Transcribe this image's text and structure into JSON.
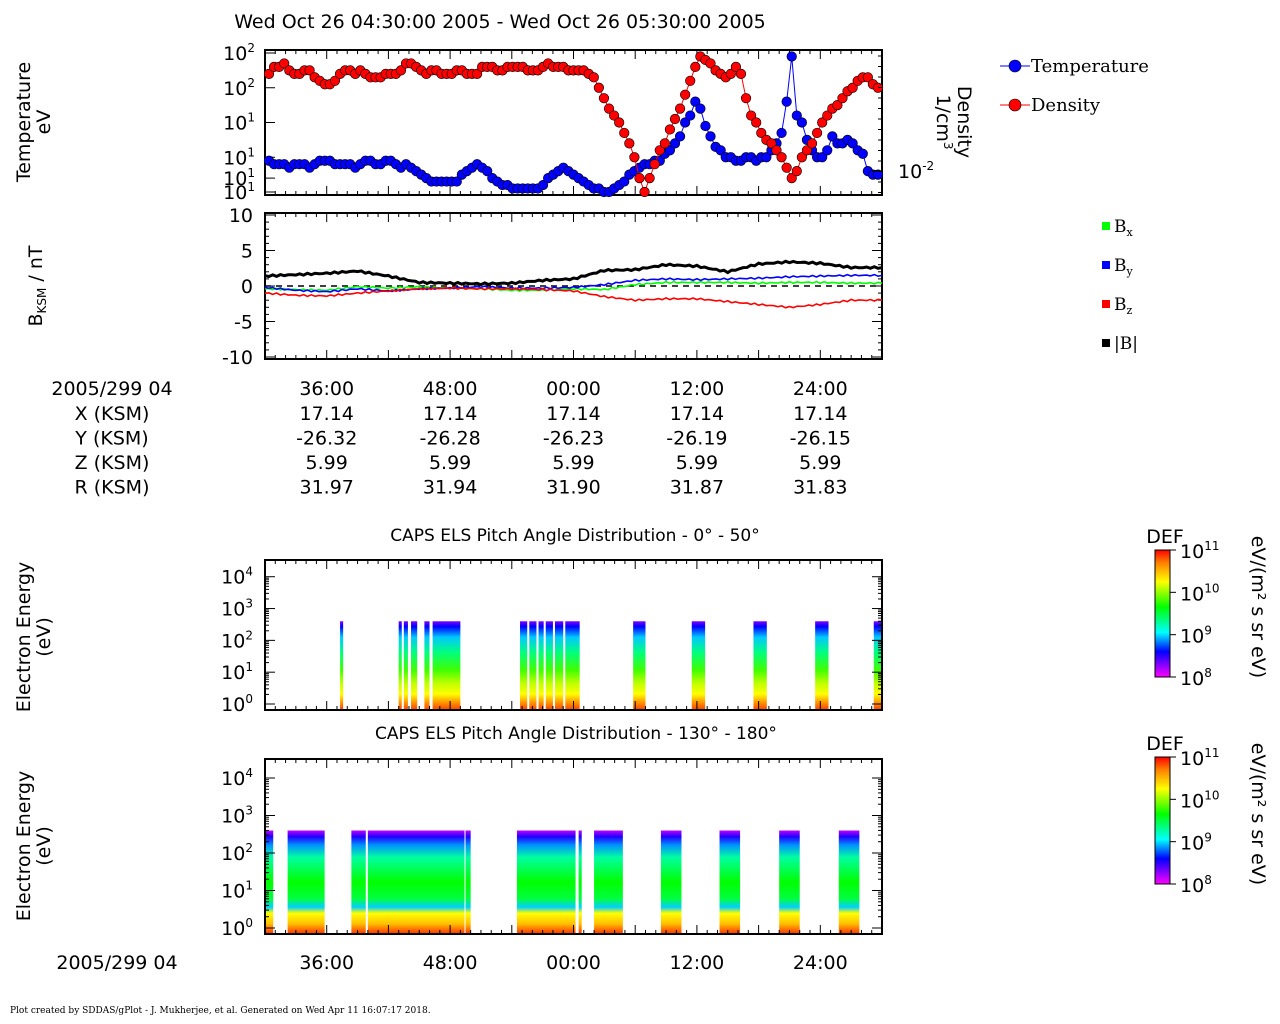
{
  "page": {
    "title": "Wed Oct 26 04:30:00 2005 - Wed Oct 26 05:30:00 2005",
    "footer": "Plot created by SDDAS/gPlot - J. Mukherjee, et al.  Generated on Wed Apr 11 16:07:17 2018."
  },
  "colors": {
    "temperature": "#0000ff",
    "density": "#ff0000",
    "bx": "#00ff00",
    "by": "#0000ff",
    "bz": "#ff0000",
    "btot": "#000000"
  },
  "chart_data": [
    {
      "type": "scatter",
      "ylabel_line1": "Temperature",
      "ylabel_line2": "eV",
      "y2label_line1": "Density",
      "y2label_line2": "1/cm",
      "y2label_sup": "3",
      "yticks_left": [
        {
          "base": "10",
          "exp": "2",
          "y": 40
        },
        {
          "base": "10",
          "exp": "2",
          "y": 30
        },
        {
          "base": "10",
          "exp": "1",
          "y": 20
        },
        {
          "base": "10",
          "exp": "1",
          "y": 10
        },
        {
          "base": "10",
          "exp": "1",
          "y": 4
        },
        {
          "base": "10",
          "exp": "1",
          "y": 0
        }
      ],
      "ytick_right": {
        "base": "10",
        "exp": "-2"
      },
      "xlim_min": [
        0,
        60
      ],
      "ylim": [
        0,
        40
      ],
      "legend": [
        {
          "name": "Temperature",
          "color": "#0000ff"
        },
        {
          "name": "Density",
          "color": "#ff0000"
        }
      ],
      "series": [
        {
          "name": "Temperature",
          "color": "#0000ff",
          "y": [
            9,
            8,
            8,
            8,
            7,
            8,
            8,
            8,
            7,
            8,
            9,
            9,
            9,
            8,
            8,
            8,
            8,
            7,
            8,
            9,
            9,
            8,
            8,
            9,
            9,
            8,
            7,
            8,
            7,
            6,
            5,
            4,
            3,
            3,
            3,
            3,
            3,
            3,
            5,
            6,
            7,
            8,
            7,
            6,
            4,
            3,
            2,
            2,
            1,
            1,
            1,
            1,
            1,
            1,
            2,
            4,
            5,
            6,
            7,
            6,
            5,
            4,
            3,
            2,
            1,
            1,
            0,
            0,
            1,
            2,
            3,
            5,
            6,
            7,
            8,
            8,
            9,
            9,
            11,
            12,
            14,
            16,
            20,
            22,
            26,
            24,
            19,
            16,
            13,
            12,
            10,
            10,
            9,
            9,
            10,
            10,
            9,
            10,
            10,
            12,
            14,
            17,
            26,
            39,
            22,
            20,
            15,
            12,
            10,
            10,
            12,
            16,
            14,
            14,
            15,
            14,
            12,
            11,
            6,
            5,
            5
          ]
        },
        {
          "name": "Density",
          "color": "#ff0000",
          "y": [
            34,
            36,
            36,
            37,
            35,
            34,
            34,
            35,
            35,
            33,
            32,
            31,
            31,
            32,
            34,
            35,
            35,
            34,
            35,
            34,
            33,
            33,
            33,
            34,
            34,
            34,
            35,
            37,
            37,
            36,
            35,
            34,
            35,
            35,
            34,
            34,
            34,
            35,
            35,
            34,
            34,
            34,
            36,
            36,
            36,
            35,
            35,
            36,
            36,
            36,
            36,
            35,
            35,
            35,
            36,
            37,
            36,
            36,
            36,
            35,
            35,
            35,
            35,
            34,
            33,
            30,
            27,
            24,
            22,
            20,
            17,
            14,
            10,
            4,
            0,
            4,
            8,
            12,
            14,
            18,
            21,
            24,
            28,
            32,
            36,
            39,
            38,
            37,
            35,
            34,
            33,
            34,
            36,
            34,
            27,
            22,
            20,
            17,
            15,
            14,
            12,
            10,
            7,
            4,
            6,
            10,
            12,
            14,
            17,
            20,
            22,
            24,
            25,
            27,
            29,
            30,
            32,
            33,
            33,
            31,
            30
          ]
        }
      ]
    },
    {
      "type": "line",
      "ylabel": "B",
      "ylabel_sub": "KSM",
      "ylabel_unit": " / nT",
      "ylim": [
        -10,
        10
      ],
      "yticks": [
        10,
        5,
        0,
        -5,
        -10
      ],
      "ytick_labels": [
        "10",
        "5",
        "0",
        "-5",
        "-10"
      ],
      "xlim_min": [
        0,
        60
      ],
      "zero_line": "dashed",
      "legend": [
        {
          "name": "B",
          "sub": "x",
          "color": "#00ff00"
        },
        {
          "name": "B",
          "sub": "y",
          "color": "#0000ff"
        },
        {
          "name": "B",
          "sub": "z",
          "color": "#ff0000"
        },
        {
          "name": "|B|",
          "sub": "",
          "color": "#000000"
        }
      ],
      "series": [
        {
          "name": "Bx",
          "color": "#00ff00",
          "x": [
            0,
            3,
            6,
            9,
            12,
            15,
            18,
            21,
            24,
            27,
            30,
            33,
            36,
            39,
            42,
            45,
            48,
            51,
            54,
            57,
            60
          ],
          "y": [
            -0.4,
            -0.5,
            -0.6,
            -0.1,
            -0.3,
            -0.1,
            -0.3,
            -0.4,
            -0.6,
            -0.6,
            -0.4,
            -0.5,
            0.2,
            0.5,
            0.5,
            0.5,
            0.4,
            0.5,
            0.5,
            0.4,
            0.4
          ]
        },
        {
          "name": "By",
          "color": "#0000ff",
          "x": [
            0,
            3,
            6,
            9,
            12,
            15,
            18,
            21,
            24,
            27,
            30,
            33,
            36,
            39,
            42,
            45,
            48,
            51,
            54,
            57,
            60
          ],
          "y": [
            -0.2,
            -0.6,
            -0.8,
            -0.4,
            -0.7,
            -0.4,
            -0.3,
            -0.1,
            -0.3,
            -0.3,
            -0.2,
            0.2,
            0.8,
            1.0,
            0.9,
            1.0,
            1.1,
            1.3,
            1.4,
            1.5,
            1.5
          ]
        },
        {
          "name": "Bz",
          "color": "#ff0000",
          "x": [
            0,
            3,
            6,
            9,
            12,
            15,
            18,
            21,
            24,
            27,
            30,
            33,
            36,
            39,
            42,
            45,
            48,
            51,
            54,
            57,
            60
          ],
          "y": [
            -1.0,
            -1.3,
            -1.4,
            -1.0,
            -0.7,
            -0.4,
            -0.3,
            -0.4,
            -0.4,
            -0.5,
            -0.7,
            -1.5,
            -2.0,
            -1.8,
            -1.8,
            -2.2,
            -2.6,
            -3.0,
            -2.6,
            -2.0,
            -2.0
          ]
        },
        {
          "name": "|B|",
          "color": "#000000",
          "x": [
            0,
            3,
            6,
            9,
            12,
            15,
            18,
            21,
            24,
            27,
            30,
            33,
            36,
            39,
            42,
            45,
            48,
            51,
            54,
            57,
            60
          ],
          "y": [
            1.4,
            1.6,
            1.8,
            2.1,
            1.4,
            0.5,
            0.4,
            0.3,
            0.4,
            0.8,
            1.0,
            2.2,
            2.3,
            3.0,
            2.8,
            2.0,
            3.1,
            3.4,
            3.2,
            2.6,
            2.6
          ]
        }
      ]
    },
    {
      "type": "heatmap",
      "title": "CAPS ELS Pitch Angle Distribution - 0° - 50°",
      "ylabel_line1": "Electron Energy",
      "ylabel_line2": "(eV)",
      "yticks": [
        {
          "base": "10",
          "exp": "4"
        },
        {
          "base": "10",
          "exp": "3"
        },
        {
          "base": "10",
          "exp": "2"
        },
        {
          "base": "10",
          "exp": "1"
        },
        {
          "base": "10",
          "exp": "0"
        }
      ],
      "colorbar": {
        "label": "DEF",
        "unit": "eV/(m² s sr eV)",
        "ticks": [
          {
            "base": "10",
            "exp": "11"
          },
          {
            "base": "10",
            "exp": "10"
          },
          {
            "base": "10",
            "exp": "9"
          },
          {
            "base": "10",
            "exp": "8"
          }
        ]
      },
      "xlim_min": [
        0,
        60
      ],
      "data_blocks_min": [
        [
          7.3,
          7.6
        ],
        [
          13.0,
          13.3
        ],
        [
          13.5,
          13.9
        ],
        [
          14.2,
          14.8
        ],
        [
          15.5,
          16.0
        ],
        [
          16.3,
          19.0
        ],
        [
          24.8,
          25.5
        ],
        [
          25.7,
          26.4
        ],
        [
          26.6,
          27.1
        ],
        [
          27.3,
          28.0
        ],
        [
          28.2,
          29.0
        ],
        [
          29.2,
          30.6
        ],
        [
          35.8,
          37.0
        ],
        [
          41.5,
          42.8
        ],
        [
          47.5,
          48.8
        ],
        [
          53.5,
          54.8
        ],
        [
          59.2,
          60.0
        ]
      ]
    },
    {
      "type": "heatmap",
      "title": "CAPS ELS Pitch Angle Distribution - 130° - 180°",
      "ylabel_line1": "Electron Energy",
      "ylabel_line2": "(eV)",
      "yticks": [
        {
          "base": "10",
          "exp": "4"
        },
        {
          "base": "10",
          "exp": "3"
        },
        {
          "base": "10",
          "exp": "2"
        },
        {
          "base": "10",
          "exp": "1"
        },
        {
          "base": "10",
          "exp": "0"
        }
      ],
      "colorbar": {
        "label": "DEF",
        "unit": "eV/(m² s sr eV)",
        "ticks": [
          {
            "base": "10",
            "exp": "11"
          },
          {
            "base": "10",
            "exp": "10"
          },
          {
            "base": "10",
            "exp": "9"
          },
          {
            "base": "10",
            "exp": "8"
          }
        ]
      },
      "xlim_min": [
        0,
        60
      ],
      "data_blocks_min": [
        [
          0.0,
          0.8
        ],
        [
          2.2,
          5.8
        ],
        [
          8.4,
          9.8
        ],
        [
          10.0,
          19.4
        ],
        [
          19.5,
          20.0
        ],
        [
          24.5,
          30.2
        ],
        [
          30.5,
          30.8
        ],
        [
          32.0,
          34.8
        ],
        [
          38.5,
          40.5
        ],
        [
          44.2,
          46.2
        ],
        [
          50.0,
          52.0
        ],
        [
          55.8,
          57.8
        ]
      ]
    }
  ],
  "axis": {
    "start_label": "2005/299 04",
    "tick_labels": [
      "36:00",
      "48:00",
      "00:00",
      "12:00",
      "24:00"
    ],
    "tick_minutes": [
      6,
      18,
      30,
      42,
      54
    ],
    "ephemeris_rows": [
      {
        "label": "X (KSM)",
        "values": [
          "17.14",
          "17.14",
          "17.14",
          "17.14",
          "17.14"
        ]
      },
      {
        "label": "Y (KSM)",
        "values": [
          "-26.32",
          "-26.28",
          "-26.23",
          "-26.19",
          "-26.15"
        ]
      },
      {
        "label": "Z (KSM)",
        "values": [
          "5.99",
          "5.99",
          "5.99",
          "5.99",
          "5.99"
        ]
      },
      {
        "label": "R (KSM)",
        "values": [
          "31.97",
          "31.94",
          "31.90",
          "31.87",
          "31.83"
        ]
      }
    ],
    "bottom_start_label": "2005/299 04"
  }
}
